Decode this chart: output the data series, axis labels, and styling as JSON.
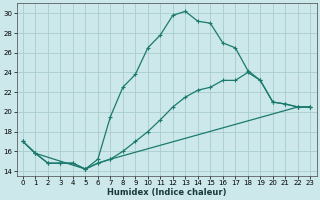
{
  "xlabel": "Humidex (Indice chaleur)",
  "bg_color": "#cce8ea",
  "grid_color": "#aacccc",
  "line_color": "#1a7a6e",
  "xlim": [
    -0.5,
    23.5
  ],
  "ylim": [
    13.5,
    31
  ],
  "xticks": [
    0,
    1,
    2,
    3,
    4,
    5,
    6,
    7,
    8,
    9,
    10,
    11,
    12,
    13,
    14,
    15,
    16,
    17,
    18,
    19,
    20,
    21,
    22,
    23
  ],
  "yticks": [
    14,
    16,
    18,
    20,
    22,
    24,
    26,
    28,
    30
  ],
  "line1_x": [
    0,
    1,
    2,
    3,
    4,
    5,
    6,
    7,
    8,
    9,
    10,
    11,
    12,
    13,
    14,
    15,
    16,
    17,
    18,
    19,
    20,
    21,
    22,
    23
  ],
  "line1_y": [
    17.0,
    15.8,
    14.8,
    14.8,
    14.8,
    14.2,
    15.2,
    19.5,
    22.5,
    23.8,
    26.5,
    27.8,
    29.8,
    30.2,
    29.2,
    29.0,
    27.0,
    26.5,
    24.2,
    23.2,
    21.0,
    20.8,
    20.5,
    20.5
  ],
  "line2_x": [
    0,
    1,
    5,
    6,
    7,
    8,
    9,
    10,
    11,
    12,
    13,
    14,
    15,
    16,
    17,
    18,
    19,
    20,
    21,
    22,
    23
  ],
  "line2_y": [
    17.0,
    15.8,
    14.2,
    14.8,
    15.2,
    16.0,
    17.0,
    18.0,
    19.2,
    20.5,
    21.5,
    22.2,
    22.5,
    23.2,
    23.2,
    24.0,
    23.2,
    21.0,
    20.8,
    20.5,
    20.5
  ],
  "line3_x": [
    0,
    1,
    2,
    3,
    4,
    5,
    6,
    7,
    22,
    23
  ],
  "line3_y": [
    17.0,
    15.8,
    14.8,
    14.8,
    14.8,
    14.2,
    14.8,
    15.2,
    20.5,
    20.5
  ]
}
